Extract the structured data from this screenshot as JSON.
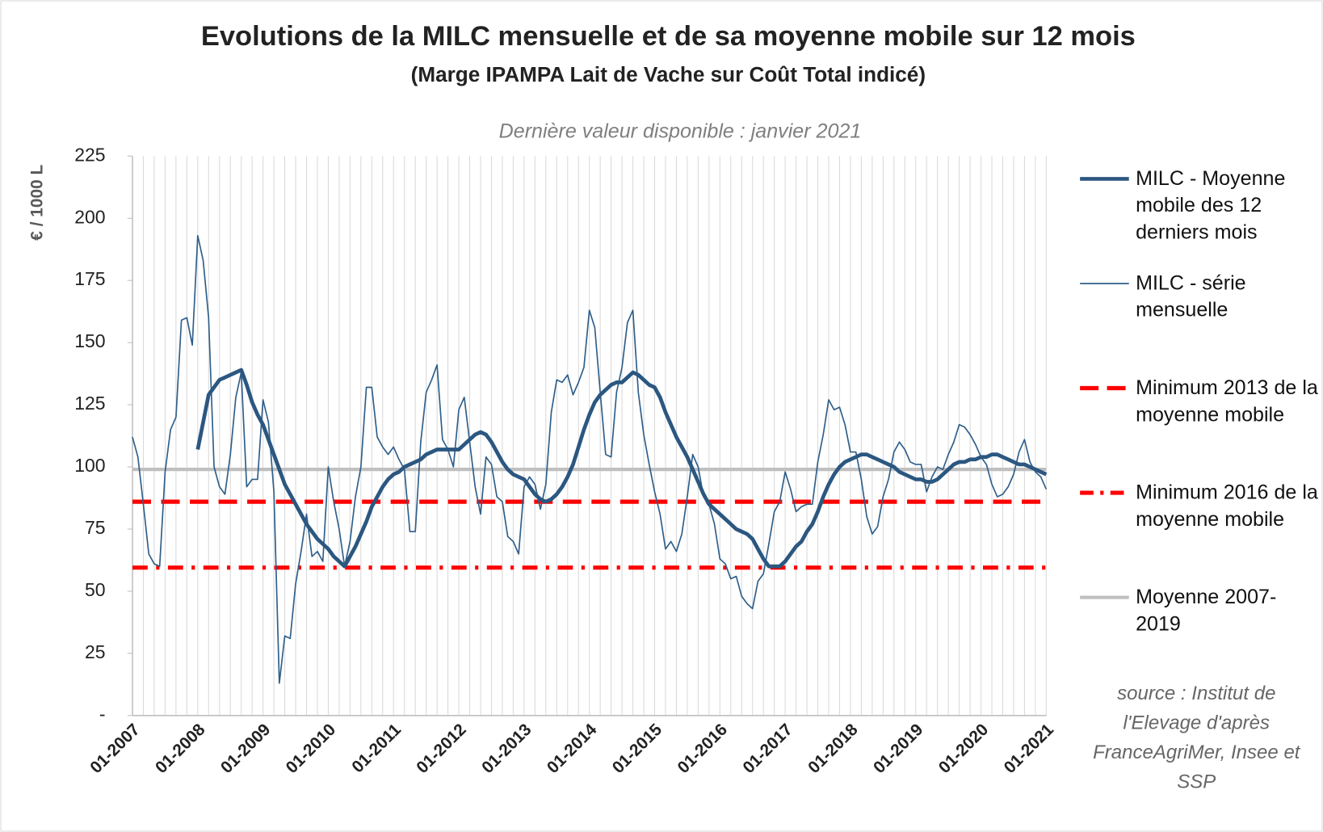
{
  "chart_data": {
    "type": "line",
    "title": "Evolutions de la MILC mensuelle et de sa moyenne mobile sur 12 mois",
    "subtitle": "(Marge IPAMPA Lait de Vache sur Coût Total indicé)",
    "annotation": "Dernière valeur disponible : janvier 2021",
    "y_label": "€ / 1000 L",
    "source": "source : Institut de l'Elevage d'après FranceAgriMer, Insee et SSP",
    "ylim": [
      0,
      225
    ],
    "yticks": [
      {
        "value": 0,
        "label": "-"
      },
      25,
      50,
      75,
      100,
      125,
      150,
      175,
      200,
      225
    ],
    "categories": [
      "01-2007",
      null,
      null,
      null,
      null,
      null,
      null,
      null,
      null,
      null,
      null,
      null,
      "01-2008",
      null,
      null,
      null,
      null,
      null,
      null,
      null,
      null,
      null,
      null,
      null,
      "01-2009",
      null,
      null,
      null,
      null,
      null,
      null,
      null,
      null,
      null,
      null,
      null,
      "01-2010",
      null,
      null,
      null,
      null,
      null,
      null,
      null,
      null,
      null,
      null,
      null,
      "01-2011",
      null,
      null,
      null,
      null,
      null,
      null,
      null,
      null,
      null,
      null,
      null,
      "01-2012",
      null,
      null,
      null,
      null,
      null,
      null,
      null,
      null,
      null,
      null,
      null,
      "01-2013",
      null,
      null,
      null,
      null,
      null,
      null,
      null,
      null,
      null,
      null,
      null,
      "01-2014",
      null,
      null,
      null,
      null,
      null,
      null,
      null,
      null,
      null,
      null,
      null,
      "01-2015",
      null,
      null,
      null,
      null,
      null,
      null,
      null,
      null,
      null,
      null,
      null,
      "01-2016",
      null,
      null,
      null,
      null,
      null,
      null,
      null,
      null,
      null,
      null,
      null,
      "01-2017",
      null,
      null,
      null,
      null,
      null,
      null,
      null,
      null,
      null,
      null,
      null,
      "01-2018",
      null,
      null,
      null,
      null,
      null,
      null,
      null,
      null,
      null,
      null,
      null,
      "01-2019",
      null,
      null,
      null,
      null,
      null,
      null,
      null,
      null,
      null,
      null,
      null,
      "01-2020",
      null,
      null,
      null,
      null,
      null,
      null,
      null,
      null,
      null,
      null,
      null,
      "01-2021"
    ],
    "series": [
      {
        "name": "MILC - Moyenne mobile des 12 derniers mois",
        "color": "#2b5780",
        "style": "thick",
        "values": [
          null,
          null,
          null,
          null,
          null,
          null,
          null,
          null,
          null,
          null,
          null,
          null,
          107,
          118,
          129,
          132,
          135,
          136,
          137,
          138,
          139,
          133,
          126,
          121,
          117,
          111,
          105,
          99,
          93,
          89,
          85,
          81,
          77,
          74,
          71,
          69,
          67,
          64,
          62,
          60,
          64,
          68,
          73,
          78,
          84,
          88,
          92,
          95,
          97,
          98,
          100,
          101,
          102,
          103,
          105,
          106,
          107,
          107,
          107,
          107,
          107,
          109,
          111,
          113,
          114,
          113,
          110,
          106,
          102,
          99,
          97,
          96,
          95,
          92,
          89,
          87,
          86,
          87,
          89,
          92,
          96,
          101,
          108,
          115,
          121,
          126,
          129,
          131,
          133,
          134,
          134,
          136,
          138,
          137,
          135,
          133,
          132,
          128,
          122,
          117,
          112,
          108,
          104,
          99,
          94,
          89,
          85,
          83,
          81,
          79,
          77,
          75,
          74,
          73,
          71,
          67,
          63,
          60,
          60,
          60,
          62,
          65,
          68,
          70,
          74,
          77,
          82,
          88,
          93,
          97,
          100,
          102,
          103,
          104,
          105,
          105,
          104,
          103,
          102,
          101,
          100,
          98,
          97,
          96,
          95,
          95,
          94,
          94,
          95,
          97,
          99,
          101,
          102,
          102,
          103,
          103,
          104,
          104,
          105,
          105,
          104,
          103,
          102,
          101,
          101,
          100,
          99,
          98,
          97
        ]
      },
      {
        "name": "MILC - série mensuelle",
        "color": "#2f5f8a",
        "style": "thin",
        "values": [
          112,
          104,
          85,
          65,
          61,
          60,
          98,
          115,
          120,
          159,
          160,
          149,
          193,
          183,
          160,
          100,
          92,
          89,
          105,
          128,
          138,
          92,
          95,
          95,
          127,
          118,
          90,
          13,
          32,
          31,
          53,
          66,
          81,
          64,
          66,
          62,
          100,
          86,
          75,
          60,
          70,
          88,
          100,
          132,
          132,
          112,
          108,
          105,
          108,
          103,
          99,
          74,
          74,
          110,
          130,
          135,
          141,
          111,
          107,
          100,
          123,
          128,
          110,
          92,
          81,
          104,
          101,
          88,
          86,
          72,
          70,
          65,
          92,
          96,
          93,
          83,
          93,
          122,
          135,
          134,
          137,
          129,
          134,
          140,
          163,
          156,
          130,
          105,
          104,
          130,
          140,
          158,
          163,
          130,
          113,
          101,
          90,
          81,
          67,
          70,
          66,
          73,
          88,
          105,
          100,
          88,
          85,
          77,
          63,
          61,
          55,
          56,
          48,
          45,
          43,
          54,
          57,
          69,
          82,
          86,
          98,
          91,
          82,
          84,
          85,
          85,
          102,
          113,
          127,
          123,
          124,
          117,
          106,
          106,
          95,
          80,
          73,
          76,
          88,
          95,
          106,
          110,
          107,
          102,
          101,
          101,
          90,
          96,
          100,
          99,
          105,
          110,
          117,
          116,
          113,
          109,
          104,
          101,
          93,
          88,
          89,
          92,
          97,
          106,
          111,
          102,
          98,
          96,
          91
        ]
      }
    ],
    "reference_lines": [
      {
        "name": "Minimum 2013 de la moyenne mobile",
        "value": 86,
        "color": "#ff0000",
        "style": "dashed"
      },
      {
        "name": "Minimum 2016 de la moyenne mobile",
        "value": 59.5,
        "color": "#ff0000",
        "style": "dashdot"
      },
      {
        "name": "Moyenne 2007-2019",
        "value": 99,
        "color": "#bfbfbf",
        "style": "solid"
      }
    ],
    "legend": "right"
  }
}
